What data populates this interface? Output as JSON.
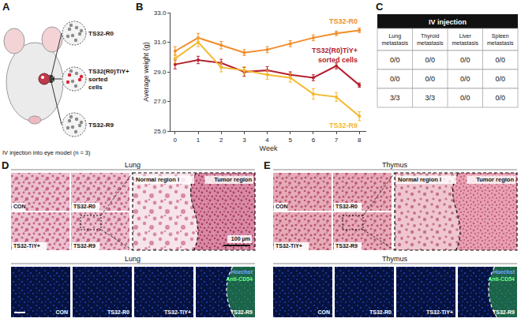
{
  "panel_a": {
    "letter": "A",
    "samples": [
      "TS32-R0",
      "TS32(R0)TiY+ sorted cells",
      "TS32-R9"
    ],
    "caption": "IV injection into eye model (n = 3)"
  },
  "chart_data": {
    "letter": "B",
    "type": "line",
    "marker": "circle",
    "x_label": "Week",
    "y_label": "Average weight (g)",
    "x": [
      0,
      1,
      2,
      3,
      4,
      5,
      6,
      7,
      8
    ],
    "xlim": [
      -0.2,
      8.3
    ],
    "xticks": [
      0,
      1,
      2,
      3,
      4,
      5,
      6,
      7,
      8
    ],
    "ylim": [
      25,
      33
    ],
    "yticks": [
      {
        "value": 25,
        "label": "25.0"
      },
      {
        "value": 27,
        "label": "27.0"
      },
      {
        "value": 29,
        "label": "29.0"
      },
      {
        "value": 31,
        "label": "31.0"
      },
      {
        "value": 33,
        "label": "33.0"
      }
    ],
    "grid": false,
    "series": [
      {
        "name": "TS32-R0",
        "color": "#f28c28",
        "values": [
          30.4,
          31.3,
          30.8,
          30.3,
          30.5,
          30.9,
          31.3,
          31.6,
          31.8
        ],
        "error": [
          0.3,
          0.3,
          0.25,
          0.2,
          0.2,
          0.2,
          0.2,
          0.15,
          0.15
        ]
      },
      {
        "name": "TS32(R0)TiY+ sorted cells",
        "color": "#b5202e",
        "values": [
          29.5,
          29.8,
          29.6,
          29.0,
          29.1,
          28.8,
          28.6,
          29.4,
          28.1
        ],
        "error": [
          0.3,
          0.25,
          0.25,
          0.3,
          0.25,
          0.2,
          0.2,
          0.2,
          0.15
        ]
      },
      {
        "name": "TS32-R9",
        "color": "#f5b82e",
        "values": [
          29.9,
          31.0,
          29.3,
          29.1,
          28.8,
          28.6,
          27.5,
          27.3,
          26.0
        ],
        "error": [
          0.3,
          0.3,
          0.3,
          0.25,
          0.3,
          0.3,
          0.35,
          0.3,
          0.3
        ]
      }
    ]
  },
  "panel_c": {
    "letter": "C",
    "title": "IV injection",
    "columns": [
      "Lung metastasis",
      "Thyroid metastasis",
      "Liver metastasis",
      "Spleen metastasis"
    ],
    "rows": [
      [
        "0/0",
        "0/0",
        "0/0",
        "0/0"
      ],
      [
        "0/0",
        "0/0",
        "0/0",
        "0/0"
      ],
      [
        "3/3",
        "3/3",
        "0/0",
        "0/0"
      ]
    ]
  },
  "panel_d": {
    "letter": "D",
    "title": "Lung",
    "tiles": [
      "CON",
      "TS32-R0",
      "TS32-TiY+",
      "TS32-R9"
    ],
    "zoom_labels": [
      "Normal region I",
      "Tumor region"
    ],
    "scale_bar": "100 μm",
    "fluorescence_title": "Lung",
    "fluorescence_tiles": [
      "CON",
      "TS32-R0",
      "TS32-TiY+",
      "TS32-R9"
    ],
    "stains": [
      "Hoechst",
      "Anti-CD54"
    ]
  },
  "panel_e": {
    "letter": "E",
    "title": "Thymus",
    "tiles": [
      "CON",
      "TS32-R0",
      "TS32-TiY+",
      "TS32-R9"
    ],
    "zoom_labels": [
      "Normal region I",
      "Tumor region"
    ],
    "fluorescence_title": "Thymus",
    "fluorescence_tiles": [
      "CON",
      "TS32-R0",
      "TS32-TiY+",
      "TS32-R9"
    ],
    "stains": [
      "Hoechst",
      "Anti-CD54"
    ]
  }
}
